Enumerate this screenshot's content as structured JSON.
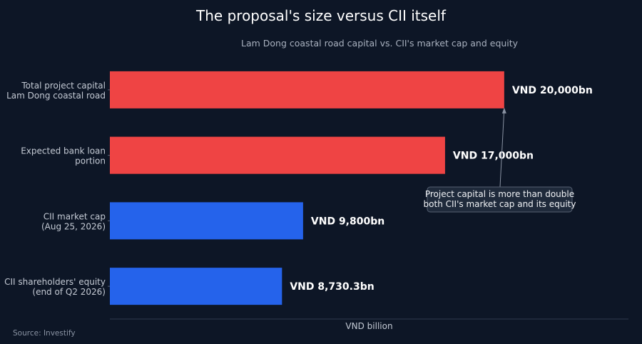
{
  "title": "The proposal's size versus CII itself",
  "subtitle": "Lam Dong coastal road capital vs. CII's market cap and equity",
  "source": "Source: Investify",
  "colors": {
    "background": "#0d1626",
    "red": "#ef4444",
    "blue": "#2563eb"
  },
  "chart_data": {
    "type": "bar",
    "orientation": "horizontal",
    "categories": [
      [
        "Total project capital",
        "Lam Dong coastal road"
      ],
      [
        "Expected bank loan",
        "portion"
      ],
      [
        "CII market cap",
        "(Aug 25, 2026)"
      ],
      [
        "CII shareholders' equity",
        "(end of Q2 2026)"
      ]
    ],
    "values": [
      20000,
      17000,
      9800,
      8730.3
    ],
    "value_labels": [
      "VND 20,000bn",
      "VND 17,000bn",
      "VND 9,800bn",
      "VND 8,730.3bn"
    ],
    "bar_colors": [
      "#ef4444",
      "#ef4444",
      "#2563eb",
      "#2563eb"
    ],
    "xlabel": "VND billion",
    "xlim": [
      0,
      26300
    ],
    "grid": false,
    "annotation": {
      "lines": [
        "Project capital is more than double",
        "both CII's market cap and its equity"
      ],
      "points_to_category": 0
    }
  }
}
